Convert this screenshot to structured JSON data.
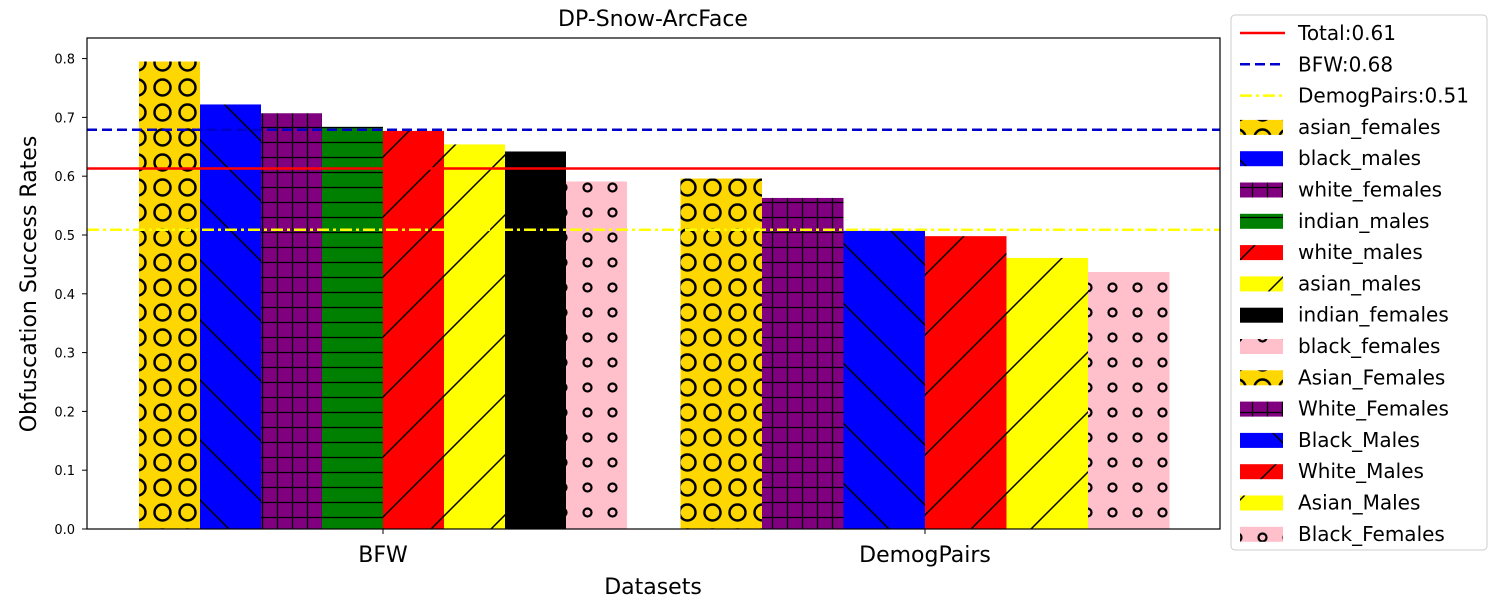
{
  "chart_data": {
    "type": "bar",
    "title": "DP-Snow-ArcFace",
    "xlabel": "Datasets",
    "ylabel": "Obfuscation Success Rates",
    "ylim": [
      0,
      0.835
    ],
    "yticks": [
      "0.0",
      "0.1",
      "0.2",
      "0.3",
      "0.4",
      "0.5",
      "0.6",
      "0.7",
      "0.8"
    ],
    "grid": false,
    "legend_position": "outside-right",
    "groups": [
      {
        "category": "BFW",
        "bars": [
          {
            "name": "asian_females",
            "value": 0.795,
            "color": "#ffd700",
            "pattern": "circles"
          },
          {
            "name": "black_males",
            "value": 0.722,
            "color": "#0000ff",
            "pattern": "backslash"
          },
          {
            "name": "white_females",
            "value": 0.707,
            "color": "#800080",
            "pattern": "grid"
          },
          {
            "name": "indian_males",
            "value": 0.684,
            "color": "#008000",
            "pattern": "hlines"
          },
          {
            "name": "white_males",
            "value": 0.677,
            "color": "#ff0000",
            "pattern": "slash"
          },
          {
            "name": "asian_males",
            "value": 0.654,
            "color": "#ffff00",
            "pattern": "slash"
          },
          {
            "name": "indian_females",
            "value": 0.642,
            "color": "#000000",
            "pattern": "none"
          },
          {
            "name": "black_females",
            "value": 0.591,
            "color": "#ffc0cb",
            "pattern": "small-circles"
          }
        ]
      },
      {
        "category": "DemogPairs",
        "bars": [
          {
            "name": "Asian_Females",
            "value": 0.596,
            "color": "#ffd700",
            "pattern": "circles"
          },
          {
            "name": "White_Females",
            "value": 0.563,
            "color": "#800080",
            "pattern": "grid"
          },
          {
            "name": "Black_Males",
            "value": 0.507,
            "color": "#0000ff",
            "pattern": "backslash"
          },
          {
            "name": "White_Males",
            "value": 0.498,
            "color": "#ff0000",
            "pattern": "slash"
          },
          {
            "name": "Asian_Males",
            "value": 0.461,
            "color": "#ffff00",
            "pattern": "slash"
          },
          {
            "name": "Black_Females",
            "value": 0.437,
            "color": "#ffc0cb",
            "pattern": "small-circles"
          }
        ]
      }
    ],
    "reference_lines": [
      {
        "label": "Total:0.61",
        "value": 0.613,
        "color": "#ff0000",
        "style": "solid"
      },
      {
        "label": "BFW:0.68",
        "value": 0.679,
        "color": "#0000cc",
        "style": "dashed"
      },
      {
        "label": "DemogPairs:0.51",
        "value": 0.509,
        "color": "#ffff00",
        "style": "dashdot"
      }
    ],
    "legend": [
      {
        "label": "Total:0.61",
        "kind": "line",
        "ref": 0
      },
      {
        "label": "BFW:0.68",
        "kind": "line",
        "ref": 1
      },
      {
        "label": "DemogPairs:0.51",
        "kind": "line",
        "ref": 2
      },
      {
        "label": "asian_females",
        "kind": "patch",
        "color": "#ffd700",
        "pattern": "circles"
      },
      {
        "label": "black_males",
        "kind": "patch",
        "color": "#0000ff",
        "pattern": "backslash"
      },
      {
        "label": "white_females",
        "kind": "patch",
        "color": "#800080",
        "pattern": "grid"
      },
      {
        "label": "indian_males",
        "kind": "patch",
        "color": "#008000",
        "pattern": "hlines"
      },
      {
        "label": "white_males",
        "kind": "patch",
        "color": "#ff0000",
        "pattern": "slash"
      },
      {
        "label": "asian_males",
        "kind": "patch",
        "color": "#ffff00",
        "pattern": "slash"
      },
      {
        "label": "indian_females",
        "kind": "patch",
        "color": "#000000",
        "pattern": "none"
      },
      {
        "label": "black_females",
        "kind": "patch",
        "color": "#ffc0cb",
        "pattern": "small-circles"
      },
      {
        "label": "Asian_Females",
        "kind": "patch",
        "color": "#ffd700",
        "pattern": "circles"
      },
      {
        "label": "White_Females",
        "kind": "patch",
        "color": "#800080",
        "pattern": "grid"
      },
      {
        "label": "Black_Males",
        "kind": "patch",
        "color": "#0000ff",
        "pattern": "backslash"
      },
      {
        "label": "White_Males",
        "kind": "patch",
        "color": "#ff0000",
        "pattern": "slash"
      },
      {
        "label": "Asian_Males",
        "kind": "patch",
        "color": "#ffff00",
        "pattern": "slash"
      },
      {
        "label": "Black_Females",
        "kind": "patch",
        "color": "#ffc0cb",
        "pattern": "small-circles"
      }
    ]
  }
}
